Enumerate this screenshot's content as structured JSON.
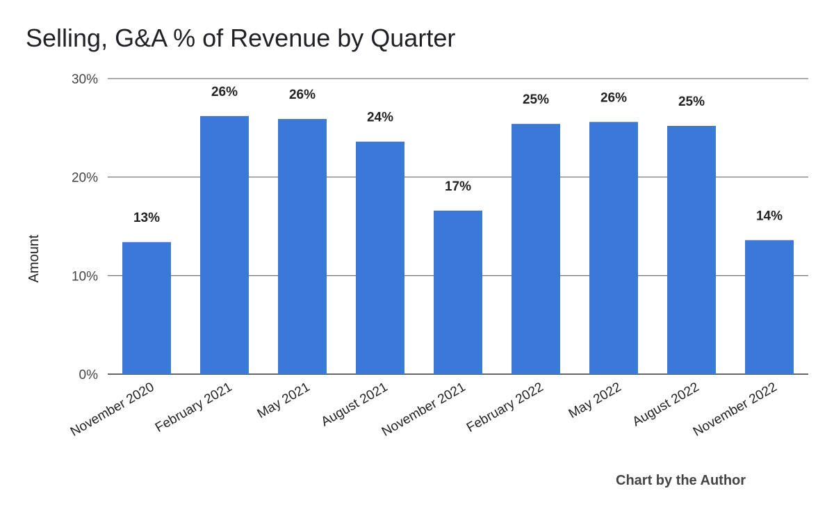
{
  "chart_data": {
    "type": "bar",
    "title": "Selling, G&A % of Revenue by Quarter",
    "xlabel": "",
    "ylabel": "Amount",
    "categories": [
      "November 2020",
      "February 2021",
      "May 2021",
      "August 2021",
      "November 2021",
      "February 2022",
      "May 2022",
      "August 2022",
      "November 2022"
    ],
    "series": [
      {
        "values": [
          13.4,
          26.2,
          25.9,
          23.6,
          16.6,
          25.4,
          25.6,
          25.2,
          13.6
        ],
        "data_labels": [
          "13%",
          "26%",
          "26%",
          "24%",
          "17%",
          "25%",
          "26%",
          "25%",
          "14%"
        ],
        "color": "#3c78d8"
      }
    ],
    "ylim": [
      0,
      30
    ],
    "yticks": [
      0,
      10,
      20,
      30
    ],
    "ytick_labels": [
      "0%",
      "10%",
      "20%",
      "30%"
    ],
    "grid": true,
    "legend": "none",
    "credit": "Chart by the Author"
  }
}
